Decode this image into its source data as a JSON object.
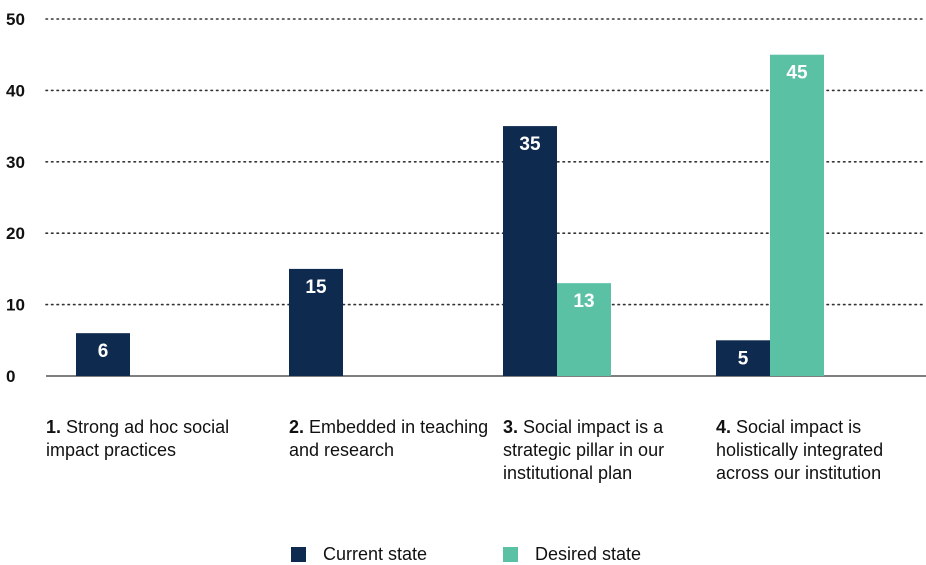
{
  "chart_data": {
    "type": "bar",
    "categories": [
      "1. Strong ad hoc social impact practices",
      "2. Embedded in teaching and research",
      "3. Social impact is a strategic pillar in our institutional plan",
      "4. Social impact is holistically integrated across our institution"
    ],
    "category_labels": [
      {
        "num": "1.",
        "text": "Strong ad hoc social impact practices"
      },
      {
        "num": "2.",
        "text": "Embedded in teaching and research"
      },
      {
        "num": "3.",
        "text": "Social impact is a strategic pillar in our institutional plan"
      },
      {
        "num": "4.",
        "text": "Social impact is holistically integrated across our institution"
      }
    ],
    "series": [
      {
        "name": "Current state",
        "values": [
          6,
          15,
          35,
          5
        ],
        "color": "#0f2a4f"
      },
      {
        "name": "Desired state",
        "values": [
          null,
          null,
          13,
          45
        ],
        "color": "#5bc1a5"
      }
    ],
    "ylim": [
      0,
      50
    ],
    "yticks": [
      0,
      10,
      20,
      30,
      40,
      50
    ],
    "grid": "dotted horizontal",
    "legend_position": "bottom-center",
    "title": "",
    "xlabel": "",
    "ylabel": ""
  }
}
